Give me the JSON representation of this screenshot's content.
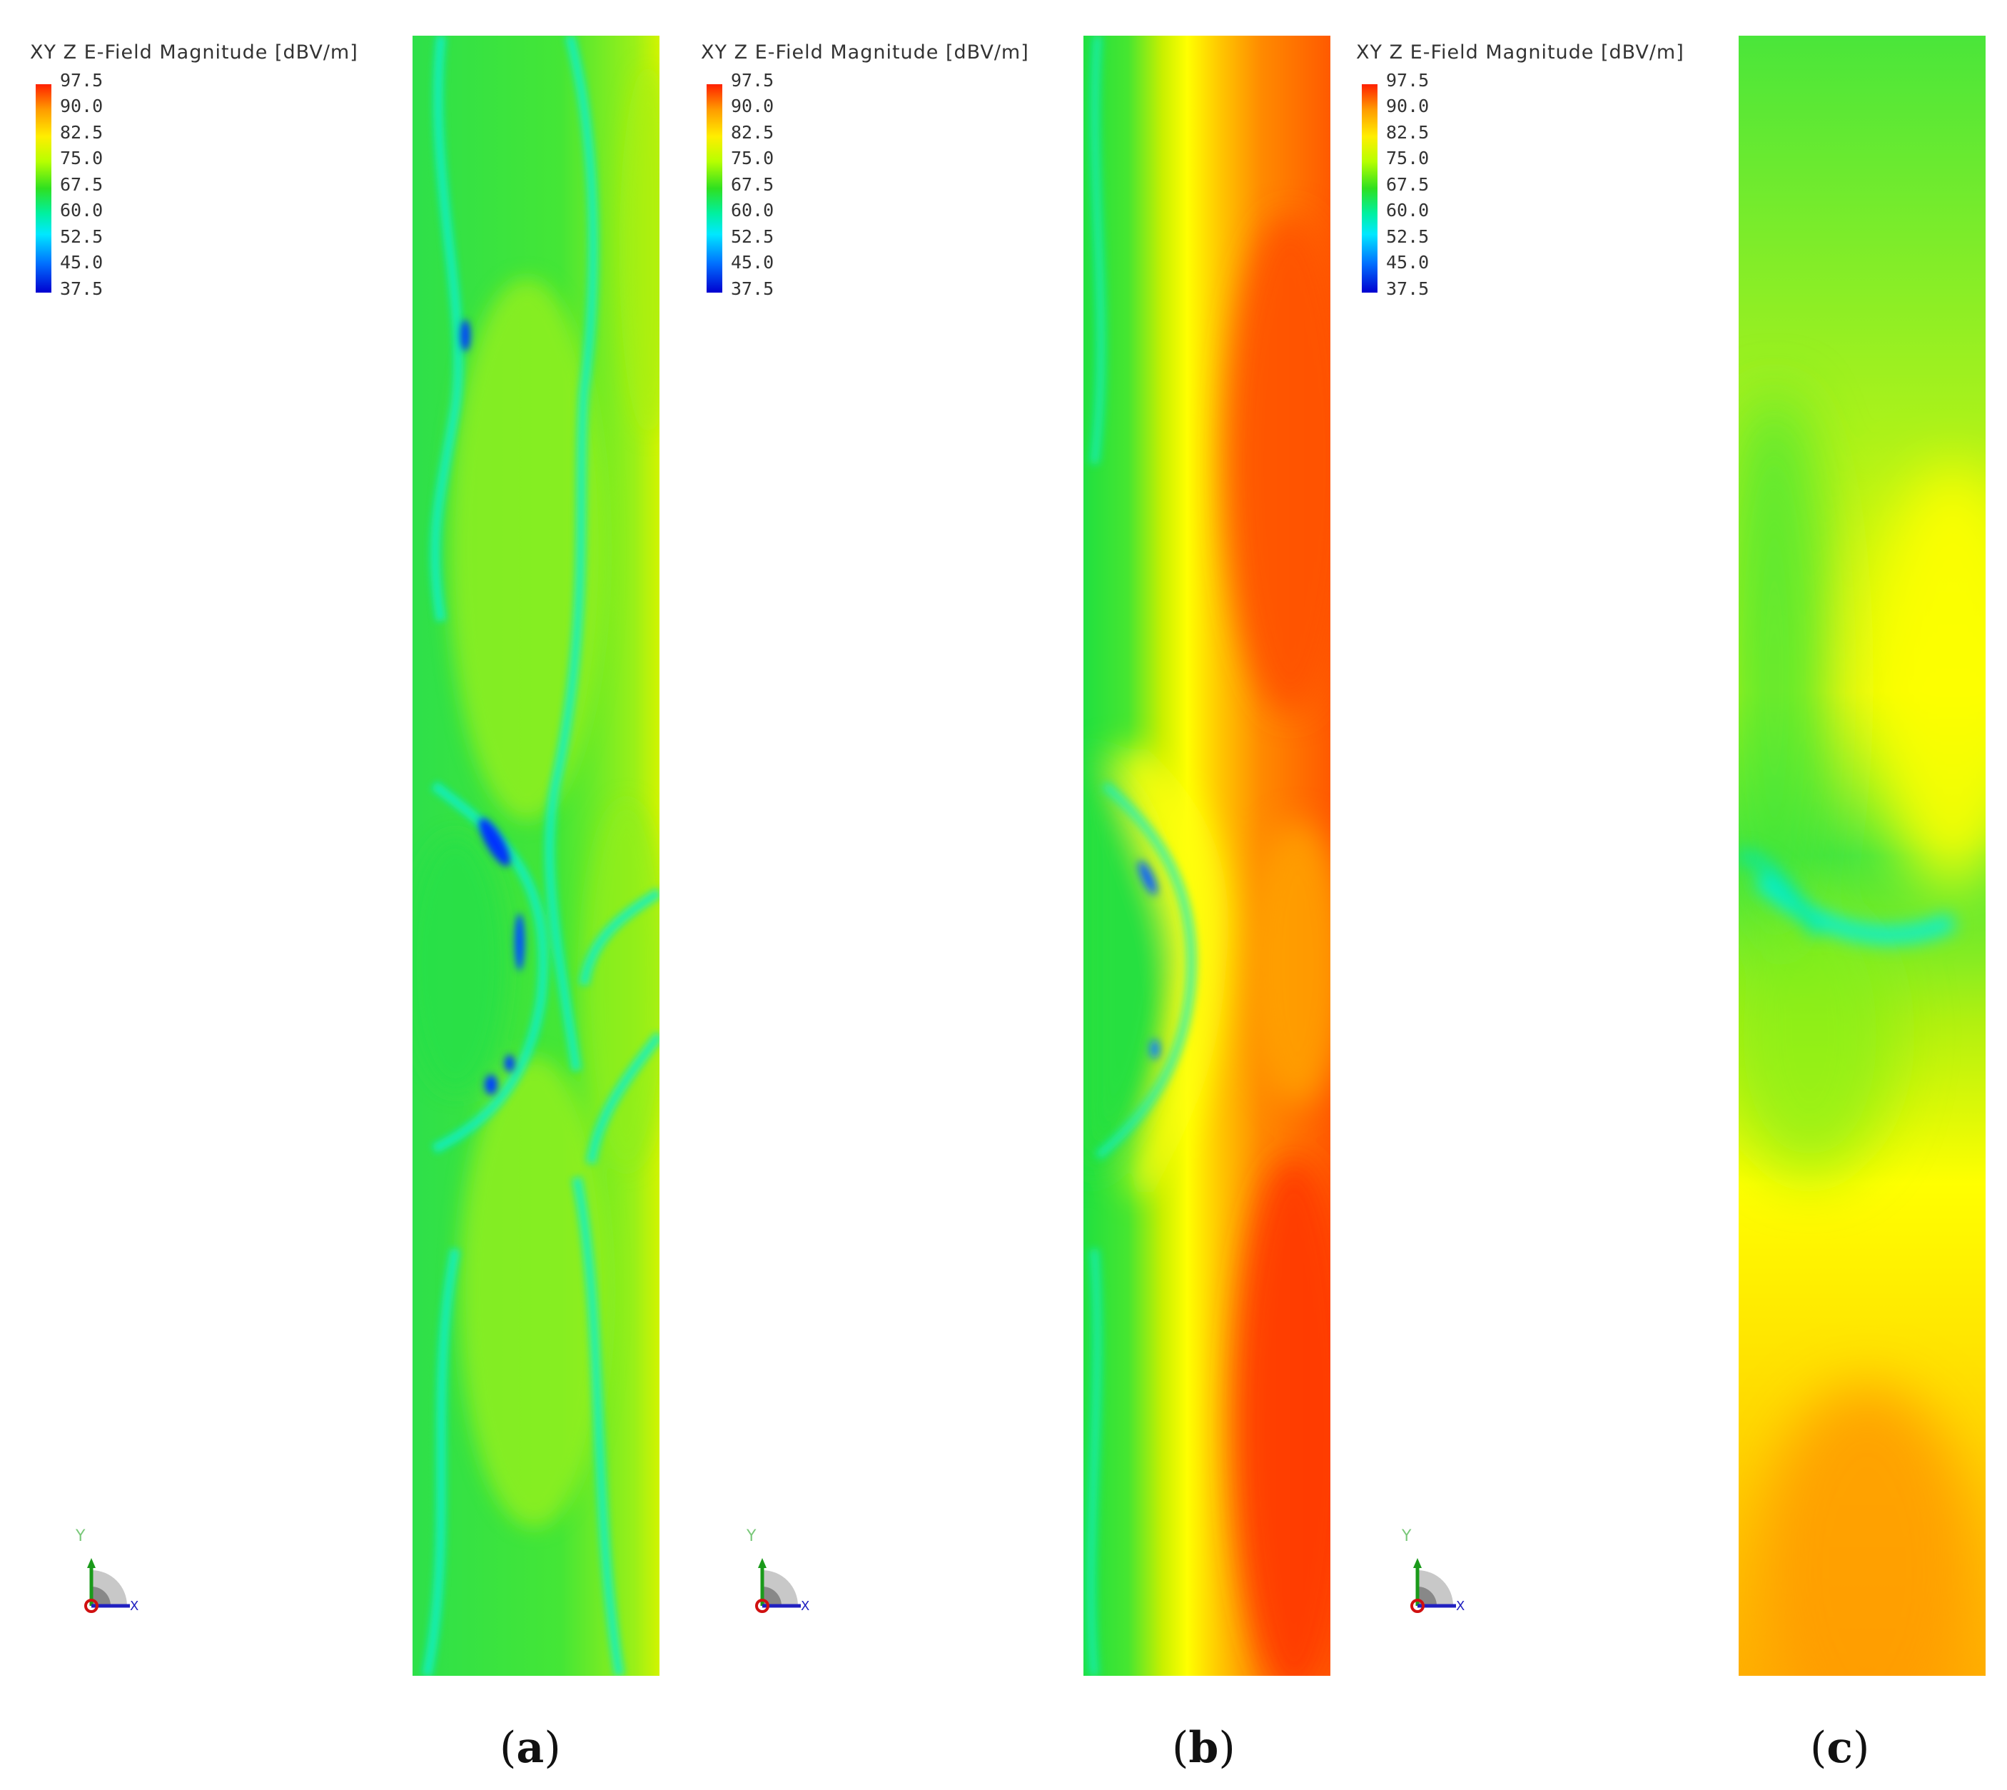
{
  "colorbar": {
    "title": "XY Z E-Field Magnitude [dBV/m]",
    "ticks": [
      "97.5",
      "90.0",
      "82.5",
      "75.0",
      "67.5",
      "60.0",
      "52.5",
      "45.0",
      "37.5"
    ]
  },
  "axes_icon": {
    "y_label": "Y",
    "x_label": "X"
  },
  "panels": [
    {
      "id": "a",
      "caption_open": "(",
      "caption_letter": "a",
      "caption_close": ")"
    },
    {
      "id": "b",
      "caption_open": "(",
      "caption_letter": "b",
      "caption_close": ")"
    },
    {
      "id": "c",
      "caption_open": "(",
      "caption_letter": "c",
      "caption_close": ")"
    }
  ],
  "colors": {
    "red": "#ff2a00",
    "orange": "#ff8c00",
    "yellow": "#ffff00",
    "yellow_green": "#b5f000",
    "green": "#22e030",
    "cyan": "#00f0ff",
    "blue": "#0030ff"
  }
}
